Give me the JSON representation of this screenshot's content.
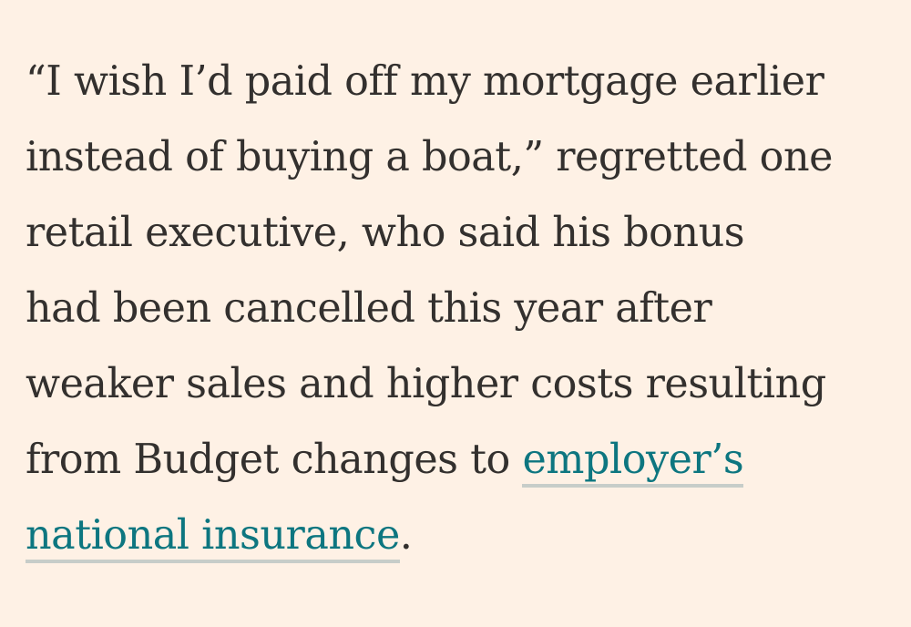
{
  "article": {
    "lines": [
      "“I wish I’d paid off my mortgage earlier",
      "instead of buying a boat,” regretted one",
      "retail executive, who said his bonus",
      "had been cancelled this year after",
      "weaker sales and higher costs resulting",
      "from Budget changes to "
    ],
    "link": {
      "text_line1": "employer’s",
      "text_line2": "national insurance"
    },
    "trailing_punctuation": "."
  },
  "colors": {
    "background": "#fef1e5",
    "text": "#33302e",
    "link": "#0d7680",
    "link_underline": "#c7cdc9"
  }
}
